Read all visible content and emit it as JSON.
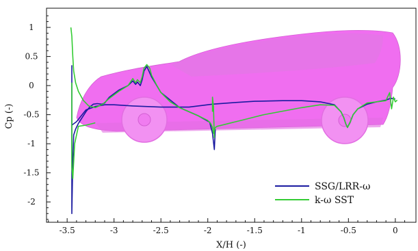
{
  "chart_data": {
    "type": "line",
    "xlabel": "X/H (-)",
    "ylabel": "Cp (-)",
    "xlim": [
      -3.72,
      0.22
    ],
    "ylim": [
      -2.35,
      1.33
    ],
    "xticks": [
      -3.5,
      -3,
      -2.5,
      -2,
      -1.5,
      -1,
      -0.5,
      0
    ],
    "xtick_labels": [
      "-3.5",
      "-3",
      "-2.5",
      "-2",
      "-1.5",
      "-1",
      "-0.5",
      "0"
    ],
    "yticks": [
      1,
      0.5,
      0,
      -0.5,
      -1,
      -1.5,
      -2
    ],
    "ytick_labels": [
      "1",
      "0.5",
      "0",
      "-0.5",
      "-1",
      "-1.5",
      "-2"
    ],
    "grid": false,
    "legend_position": "bottom-right",
    "background_image": "car-silhouette",
    "background_color": "#ee66ee",
    "series": [
      {
        "name": "SSG/LRR-ω",
        "color": "#1a1aa0",
        "segments": [
          {
            "x": [
              -3.45,
              -3.45,
              -3.45,
              -3.44,
              -3.43,
              -3.41,
              -3.38,
              -3.34,
              -3.3,
              -3.26,
              -3.22,
              -3.18,
              -3.13,
              -3.1,
              -3.05,
              -2.95,
              -2.85,
              -2.8,
              -2.77,
              -2.75,
              -2.72,
              -2.7,
              -2.68,
              -2.65,
              -2.6,
              -2.5,
              -2.3,
              -2.1,
              -1.98,
              -1.95,
              -1.93,
              -1.92
            ],
            "y": [
              0.35,
              -1.7,
              -2.2,
              -1.3,
              -0.85,
              -0.75,
              -0.65,
              -0.55,
              -0.45,
              -0.37,
              -0.32,
              -0.31,
              -0.32,
              -0.3,
              -0.2,
              -0.08,
              0.0,
              0.08,
              0.02,
              0.06,
              0.0,
              0.1,
              0.25,
              0.33,
              0.15,
              -0.12,
              -0.38,
              -0.52,
              -0.63,
              -0.82,
              -1.1,
              -0.75
            ]
          },
          {
            "x": [
              -3.45,
              -3.4,
              -3.3,
              -3.2,
              -3.1,
              -3.0,
              -2.8,
              -2.5,
              -2.2,
              -1.95,
              -1.7,
              -1.5,
              -1.2,
              -1.0,
              -0.8,
              -0.65,
              -0.58,
              -0.55,
              -0.53,
              -0.51,
              -0.48,
              -0.45,
              -0.4,
              -0.3,
              -0.2,
              -0.1,
              -0.05,
              0.0
            ],
            "y": [
              -0.68,
              -0.62,
              -0.42,
              -0.36,
              -0.33,
              -0.33,
              -0.35,
              -0.37,
              -0.37,
              -0.32,
              -0.29,
              -0.27,
              -0.26,
              -0.26,
              -0.28,
              -0.33,
              -0.45,
              -0.55,
              -0.65,
              -0.72,
              -0.62,
              -0.5,
              -0.4,
              -0.32,
              -0.28,
              -0.25,
              -0.22,
              -0.23
            ]
          }
        ]
      },
      {
        "name": "k-ω SST",
        "color": "#33cc33",
        "segments": [
          {
            "x": [
              -3.46,
              -3.45,
              -3.44,
              -3.43,
              -3.41,
              -3.38,
              -3.33,
              -3.27,
              -3.2,
              -3.12,
              -3.05,
              -2.95,
              -2.85,
              -2.8,
              -2.77,
              -2.75,
              -2.72,
              -2.7,
              -2.68,
              -2.65,
              -2.62,
              -2.6,
              -2.55,
              -2.5,
              -2.4,
              -2.3,
              -2.2,
              -2.1,
              -2.0,
              -1.97,
              -1.95,
              -1.94,
              -1.93,
              -1.92,
              -1.9,
              -1.85,
              -1.8,
              -1.7,
              -1.6,
              -1.4,
              -1.2,
              -1.0,
              -0.8,
              -0.65,
              -0.58,
              -0.55,
              -0.53,
              -0.51,
              -0.48,
              -0.45,
              -0.4,
              -0.3,
              -0.2,
              -0.1,
              -0.06,
              -0.04,
              -0.02,
              0.0,
              0.02
            ],
            "y": [
              1.0,
              0.85,
              0.5,
              0.25,
              0.05,
              -0.1,
              -0.25,
              -0.35,
              -0.38,
              -0.32,
              -0.22,
              -0.1,
              0.0,
              0.12,
              0.05,
              0.1,
              0.05,
              0.15,
              0.3,
              0.36,
              0.3,
              0.18,
              0.02,
              -0.12,
              -0.28,
              -0.38,
              -0.45,
              -0.52,
              -0.6,
              -0.65,
              -0.72,
              -0.82,
              -0.78,
              -0.72,
              -0.7,
              -0.68,
              -0.66,
              -0.62,
              -0.58,
              -0.5,
              -0.44,
              -0.38,
              -0.33,
              -0.34,
              -0.45,
              -0.55,
              -0.65,
              -0.72,
              -0.62,
              -0.5,
              -0.4,
              -0.3,
              -0.28,
              -0.26,
              -0.12,
              -0.4,
              -0.2,
              -0.28,
              -0.25
            ]
          },
          {
            "x": [
              -3.45,
              -3.45,
              -3.44,
              -3.42,
              -3.38,
              -3.3,
              -3.2
            ],
            "y": [
              0.05,
              -1.4,
              -1.6,
              -1.0,
              -0.7,
              -0.68,
              -0.64
            ]
          },
          {
            "x": [
              -1.95,
              -1.95,
              -1.94,
              -1.93
            ],
            "y": [
              -0.45,
              -0.2,
              -0.35,
              -0.9
            ]
          }
        ]
      }
    ]
  }
}
